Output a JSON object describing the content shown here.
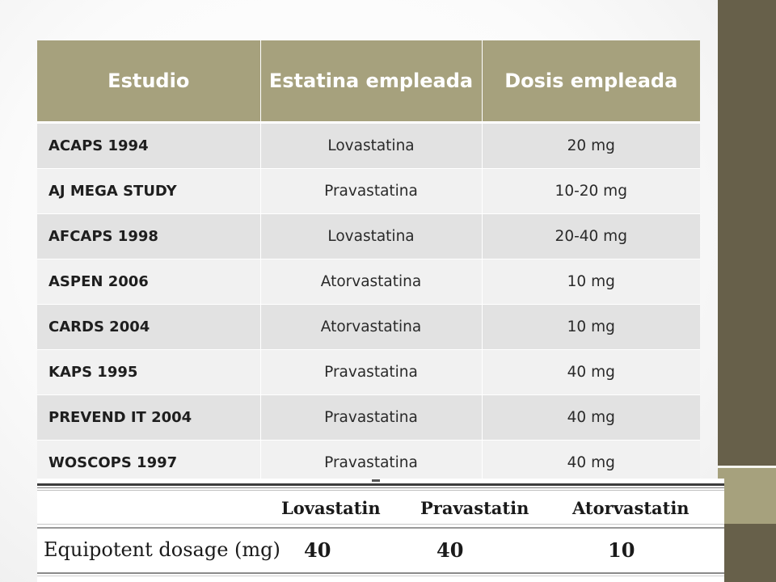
{
  "table": {
    "headers": [
      "Estudio",
      "Estatina empleada",
      "Dosis empleada"
    ],
    "rows": [
      {
        "study": "ACAPS 1994",
        "statin": "Lovastatina",
        "dose": "20 mg"
      },
      {
        "study": "AJ MEGA STUDY",
        "statin": "Pravastatina",
        "dose": "10-20 mg"
      },
      {
        "study": "AFCAPS 1998",
        "statin": "Lovastatina",
        "dose": "20-40 mg"
      },
      {
        "study": "ASPEN 2006",
        "statin": "Atorvastatina",
        "dose": "10 mg"
      },
      {
        "study": "CARDS 2004",
        "statin": "Atorvastatina",
        "dose": "10 mg"
      },
      {
        "study": "KAPS 1995",
        "statin": "Pravastatina",
        "dose": "40 mg"
      },
      {
        "study": "PREVEND IT 2004",
        "statin": "Pravastatina",
        "dose": "40 mg"
      },
      {
        "study": "WOSCOPS 1997",
        "statin": "Pravastatina",
        "dose": "40 mg"
      }
    ]
  },
  "equipotent": {
    "headers": [
      "Lovastatin",
      "Pravastatin",
      "Atorvastatin"
    ],
    "row_label": "Equipotent dosage (mg)",
    "values": [
      "40",
      "40",
      "10"
    ]
  },
  "colors": {
    "header_bg": "#a6a17d",
    "side_band": "#67604a",
    "row_odd": "#e2e2e2",
    "row_even": "#f1f1f1"
  }
}
